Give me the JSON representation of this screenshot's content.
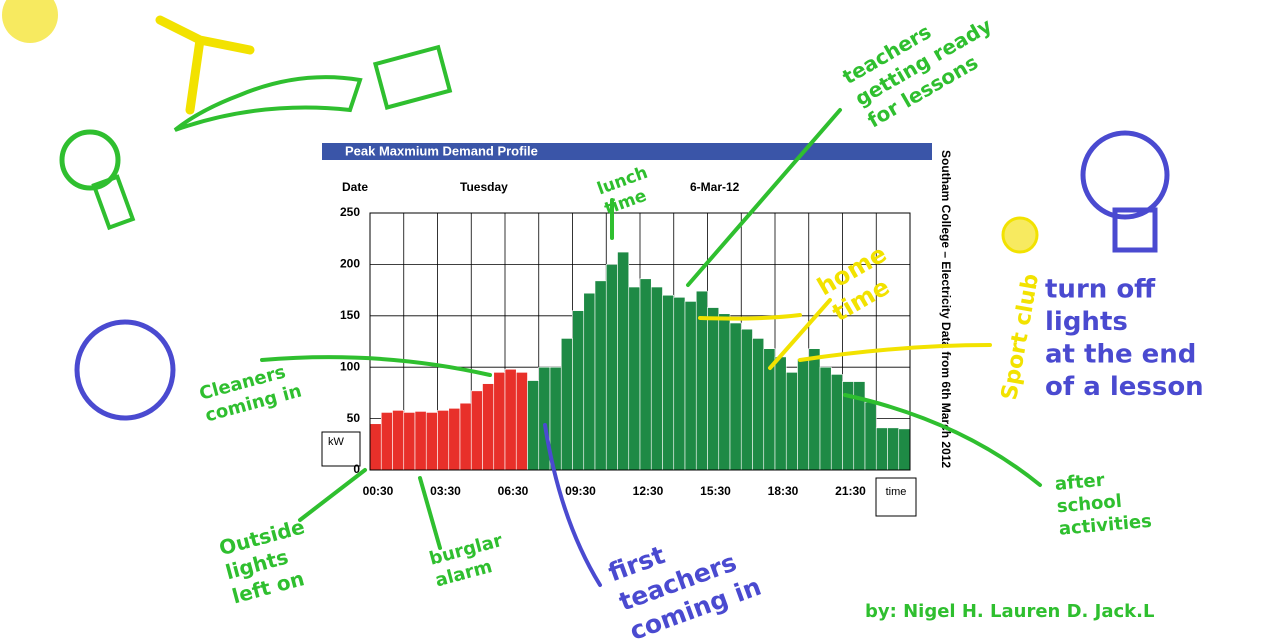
{
  "chart_data": {
    "type": "bar",
    "title": "Peak Maxmium Demand Profile",
    "date_label": "Date",
    "day": "Tuesday",
    "date": "6-Mar-12",
    "side_title": "Southam College – Electricity Data from 6th March 2012",
    "ylabel": "kW",
    "xlabel": "time",
    "categories": [
      "00:30",
      null,
      null,
      null,
      null,
      null,
      "03:30",
      null,
      null,
      null,
      null,
      null,
      "06:30",
      null,
      null,
      null,
      null,
      null,
      "09:30",
      null,
      null,
      null,
      null,
      null,
      "12:30",
      null,
      null,
      null,
      null,
      null,
      "15:30",
      null,
      null,
      null,
      null,
      null,
      "18:30",
      null,
      null,
      null,
      null,
      null,
      "21:30",
      null,
      null,
      null,
      null,
      null
    ],
    "values": [
      45,
      56,
      58,
      56,
      57,
      56,
      58,
      60,
      65,
      77,
      84,
      95,
      98,
      95,
      87,
      100,
      100,
      128,
      155,
      172,
      184,
      200,
      212,
      178,
      186,
      178,
      170,
      168,
      164,
      174,
      158,
      152,
      143,
      137,
      128,
      118,
      110,
      95,
      108,
      118,
      100,
      93,
      86,
      86,
      66,
      41,
      41,
      40
    ],
    "colors": [
      "#e8302a",
      "#e8302a",
      "#e8302a",
      "#e8302a",
      "#e8302a",
      "#e8302a",
      "#e8302a",
      "#e8302a",
      "#e8302a",
      "#e8302a",
      "#e8302a",
      "#e8302a",
      "#e8302a",
      "#e8302a",
      "#1e8a45",
      "#1e8a45",
      "#1e8a45",
      "#1e8a45",
      "#1e8a45",
      "#1e8a45",
      "#1e8a45",
      "#1e8a45",
      "#1e8a45",
      "#1e8a45",
      "#1e8a45",
      "#1e8a45",
      "#1e8a45",
      "#1e8a45",
      "#1e8a45",
      "#1e8a45",
      "#1e8a45",
      "#1e8a45",
      "#1e8a45",
      "#1e8a45",
      "#1e8a45",
      "#1e8a45",
      "#1e8a45",
      "#1e8a45",
      "#1e8a45",
      "#1e8a45",
      "#1e8a45",
      "#1e8a45",
      "#1e8a45",
      "#1e8a45",
      "#1e8a45",
      "#1e8a45",
      "#1e8a45",
      "#1e8a45"
    ],
    "ylim": [
      0,
      250
    ],
    "yticks": [
      0,
      50,
      100,
      150,
      200,
      250
    ],
    "grid": true,
    "annotations": [
      {
        "lines": [
          "lunch",
          "time"
        ],
        "color": "#2fbf2f"
      },
      {
        "lines": [
          "teachers",
          "getting ready",
          "for lessons"
        ],
        "color": "#2fbf2f"
      },
      {
        "lines": [
          "home",
          "time"
        ],
        "color": "#f2e200"
      },
      {
        "lines": [
          "Sport club"
        ],
        "color": "#f2e200"
      },
      {
        "lines": [
          "turn off",
          "lights",
          "at the end",
          "of a lesson"
        ],
        "color": "#4a4ad0"
      },
      {
        "lines": [
          "Cleaners",
          "coming in"
        ],
        "color": "#2fbf2f"
      },
      {
        "lines": [
          "Outside",
          "lights",
          "left on"
        ],
        "color": "#2fbf2f"
      },
      {
        "lines": [
          "burglar",
          "alarm"
        ],
        "color": "#2fbf2f"
      },
      {
        "lines": [
          "first",
          "teachers",
          "coming in"
        ],
        "color": "#4a4ad0"
      },
      {
        "lines": [
          "after",
          "school",
          "activities"
        ],
        "color": "#2fbf2f"
      },
      {
        "lines": [
          "by: Nigel H. Lauren D. Jack.L"
        ],
        "color": "#2fbf2f"
      }
    ]
  }
}
